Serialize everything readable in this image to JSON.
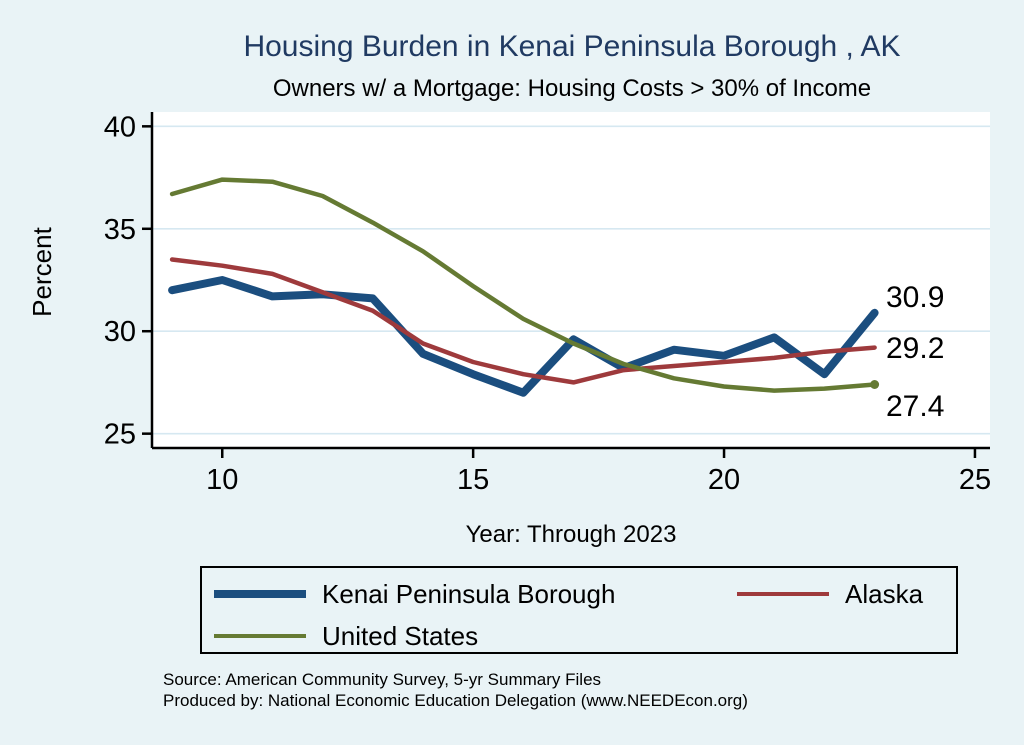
{
  "colors": {
    "background": "#e9f3f6",
    "plot_background": "#ffffff",
    "grid": "#d6e8f1",
    "axis": "#000000",
    "title_text": "#203a62"
  },
  "notes": {
    "source": "Source: American Community Survey, 5-yr Summary Files",
    "produced_by": "Produced by: National Economic Education Delegation (www.NEEDEcon.org)"
  },
  "chart_data": {
    "type": "line",
    "title": "Housing Burden in Kenai Peninsula Borough , AK",
    "subtitle": "Owners w/ a Mortgage: Housing Costs > 30% of Income",
    "xlabel": "Year: Through 2023",
    "ylabel": "Percent",
    "x": [
      9,
      10,
      11,
      12,
      13,
      14,
      15,
      16,
      17,
      18,
      19,
      20,
      21,
      22,
      23
    ],
    "xticks": [
      10,
      15,
      20,
      25
    ],
    "yticks": [
      25,
      30,
      35,
      40
    ],
    "xlim": [
      8.6,
      25.3
    ],
    "ylim": [
      24.3,
      40.7
    ],
    "grid": "horizontal",
    "legend_position": "bottom",
    "series": [
      {
        "name": "Kenai Peninsula Borough",
        "color": "#1b4e7f",
        "width": 8,
        "end_label": "30.9",
        "values": [
          32.0,
          32.5,
          31.7,
          31.8,
          31.6,
          28.9,
          27.9,
          27.0,
          29.6,
          28.2,
          29.1,
          28.8,
          29.7,
          27.9,
          30.9
        ]
      },
      {
        "name": "Alaska",
        "color": "#9e3a3c",
        "width": 4.5,
        "end_label": "29.2",
        "values": [
          33.5,
          33.2,
          32.8,
          31.9,
          31.0,
          29.4,
          28.5,
          27.9,
          27.5,
          28.1,
          28.3,
          28.5,
          28.7,
          29.0,
          29.2
        ]
      },
      {
        "name": "United States",
        "color": "#657a33",
        "width": 4.5,
        "end_label": "27.4",
        "end_marker": true,
        "values": [
          36.7,
          37.4,
          37.3,
          36.6,
          35.3,
          33.9,
          32.2,
          30.6,
          29.4,
          28.4,
          27.7,
          27.3,
          27.1,
          27.2,
          27.4
        ]
      }
    ]
  }
}
